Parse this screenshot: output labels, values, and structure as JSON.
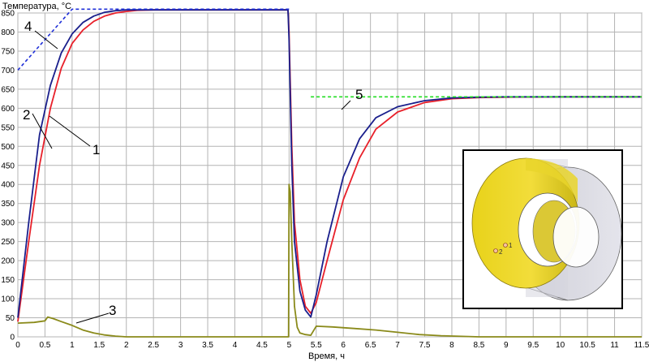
{
  "chart_data": {
    "type": "line",
    "ylabel": "Температура, °С",
    "xlabel": "Время, ч",
    "xlim": [
      0,
      11.5
    ],
    "ylim": [
      0,
      850
    ],
    "x_ticks": [
      "0",
      "0.5",
      "1",
      "1.5",
      "2",
      "2.5",
      "3",
      "3.5",
      "4",
      "4.5",
      "5",
      "5.5",
      "6",
      "6.5",
      "7",
      "7.5",
      "8",
      "8.5",
      "9",
      "9.5",
      "10",
      "10.5",
      "11",
      "11.5"
    ],
    "y_ticks": [
      "0",
      "50",
      "100",
      "150",
      "200",
      "250",
      "300",
      "350",
      "400",
      "450",
      "500",
      "550",
      "600",
      "650",
      "700",
      "750",
      "800",
      "850"
    ],
    "grid": true,
    "series": [
      {
        "name": "1",
        "color": "#e8202a",
        "dashed": false,
        "x": [
          0,
          0.2,
          0.4,
          0.6,
          0.8,
          1.0,
          1.2,
          1.4,
          1.6,
          1.8,
          2.0,
          2.2,
          2.5,
          3.0,
          4.0,
          4.98,
          5.0,
          5.05,
          5.1,
          5.2,
          5.3,
          5.4,
          5.5,
          5.7,
          6.0,
          6.3,
          6.6,
          7.0,
          7.5,
          8.0,
          8.5,
          9.0,
          10.0,
          11.5
        ],
        "y": [
          40,
          250,
          450,
          600,
          705,
          770,
          805,
          828,
          842,
          850,
          854,
          857,
          858,
          858,
          858,
          858,
          800,
          500,
          300,
          150,
          80,
          62,
          90,
          200,
          360,
          470,
          545,
          590,
          615,
          625,
          628,
          629,
          630,
          630
        ]
      },
      {
        "name": "2",
        "color": "#1a1f8c",
        "dashed": false,
        "x": [
          0,
          0.2,
          0.4,
          0.6,
          0.8,
          1.0,
          1.2,
          1.4,
          1.6,
          1.8,
          2.0,
          2.2,
          2.5,
          3.0,
          4.0,
          4.98,
          5.0,
          5.05,
          5.1,
          5.2,
          5.3,
          5.4,
          5.5,
          5.7,
          6.0,
          6.3,
          6.6,
          7.0,
          7.5,
          8.0,
          8.5,
          9.0,
          10.0,
          11.5
        ],
        "y": [
          50,
          300,
          530,
          660,
          745,
          795,
          825,
          842,
          852,
          856,
          858,
          858,
          858,
          858,
          858,
          858,
          780,
          450,
          250,
          120,
          70,
          52,
          110,
          250,
          420,
          520,
          575,
          604,
          620,
          627,
          629,
          630,
          630,
          630
        ]
      },
      {
        "name": "3",
        "color": "#8a8a1a",
        "dashed": false,
        "x": [
          0,
          0.3,
          0.5,
          0.55,
          0.65,
          0.8,
          1.0,
          1.2,
          1.4,
          1.6,
          1.8,
          2.0,
          2.5,
          3.0,
          4.0,
          4.99,
          5.0,
          5.02,
          5.05,
          5.1,
          5.15,
          5.2,
          5.3,
          5.4,
          5.5,
          5.8,
          6.2,
          6.6,
          7.0,
          7.4,
          7.8,
          8.5,
          9.5,
          10.5,
          11.5
        ],
        "y": [
          36,
          38,
          42,
          52,
          48,
          40,
          30,
          18,
          10,
          5,
          2,
          0,
          0,
          0,
          0,
          0,
          400,
          380,
          250,
          80,
          25,
          10,
          6,
          4,
          28,
          26,
          22,
          18,
          12,
          6,
          3,
          0,
          0,
          0,
          0
        ]
      },
      {
        "name": "4",
        "color": "#1f2fd8",
        "dashed": true,
        "x": [
          0,
          1.0,
          5.0
        ],
        "y": [
          700,
          860,
          860
        ]
      },
      {
        "name": "5",
        "color": "#22dd22",
        "dashed": true,
        "x": [
          5.4,
          11.5
        ],
        "y": [
          630,
          630
        ]
      }
    ],
    "inset": {
      "marker_labels": [
        "1",
        "2"
      ]
    }
  }
}
